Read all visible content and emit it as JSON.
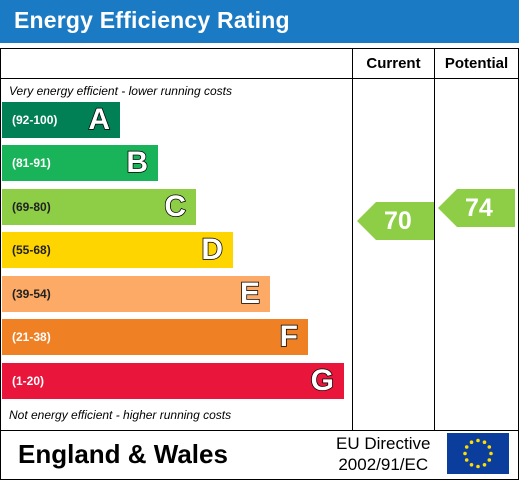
{
  "header": {
    "title": "Energy Efficiency Rating"
  },
  "columns": {
    "current": "Current",
    "potential": "Potential"
  },
  "notes": {
    "top": "Very energy efficient - lower running costs",
    "bottom": "Not energy efficient - higher running costs"
  },
  "chart_data": {
    "type": "bar",
    "title": "Energy Efficiency Rating",
    "bands": [
      {
        "letter": "A",
        "range": "(92-100)",
        "color": "#008054"
      },
      {
        "letter": "B",
        "range": "(81-91)",
        "color": "#19b459"
      },
      {
        "letter": "C",
        "range": "(69-80)",
        "color": "#8dce46"
      },
      {
        "letter": "D",
        "range": "(55-68)",
        "color": "#ffd500"
      },
      {
        "letter": "E",
        "range": "(39-54)",
        "color": "#fcaa65"
      },
      {
        "letter": "F",
        "range": "(21-38)",
        "color": "#ef8023"
      },
      {
        "letter": "G",
        "range": "(1-20)",
        "color": "#e9153b"
      }
    ],
    "current": {
      "label": "Current",
      "value": 70,
      "band": "C",
      "color": "#8dce46"
    },
    "potential": {
      "label": "Potential",
      "value": 74,
      "band": "C",
      "color": "#8dce46"
    }
  },
  "footer": {
    "region": "England & Wales",
    "directive_line1": "EU Directive",
    "directive_line2": "2002/91/EC",
    "flag_icon": "eu-flag-icon"
  }
}
